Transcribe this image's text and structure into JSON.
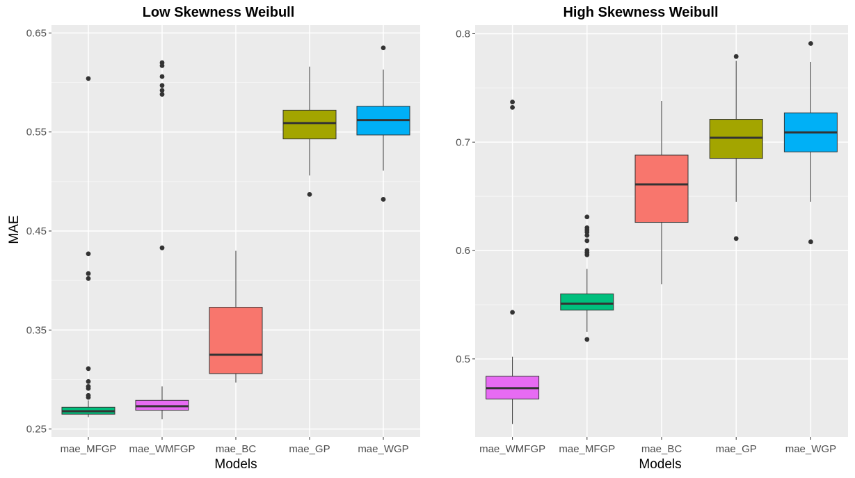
{
  "colors": {
    "panel_bg": "#ebebeb",
    "grid_major": "#ffffff",
    "grid_minor": "#f4f4f4",
    "box_outline": "#333333",
    "mae_BC": "#f8766d",
    "mae_GP": "#a3a500",
    "mae_MFGP": "#00bf7d",
    "mae_WGP": "#00b0f6",
    "mae_WMFGP": "#e76bf3"
  },
  "chart_data": [
    {
      "type": "box",
      "title": "Low Skewness Weibull",
      "xlabel": "Models",
      "ylabel": "MAE",
      "ylim": [
        0.242,
        0.658
      ],
      "y_ticks": [
        0.25,
        0.35,
        0.45,
        0.55,
        0.65
      ],
      "y_tick_labels": [
        "0.25",
        "0.35",
        "0.45",
        "0.55",
        "0.65"
      ],
      "categories": [
        "mae_MFGP",
        "mae_WMFGP",
        "mae_BC",
        "mae_GP",
        "mae_WGP"
      ],
      "boxes": [
        {
          "name": "mae_MFGP",
          "color": "#00bf7d",
          "whisker_low": 0.262,
          "q1": 0.265,
          "median": 0.268,
          "q3": 0.272,
          "whisker_high": 0.279,
          "outliers": [
            0.282,
            0.284,
            0.291,
            0.293,
            0.298,
            0.311,
            0.402,
            0.407,
            0.427,
            0.604
          ]
        },
        {
          "name": "mae_WMFGP",
          "color": "#e76bf3",
          "whisker_low": 0.26,
          "q1": 0.269,
          "median": 0.273,
          "q3": 0.279,
          "whisker_high": 0.293,
          "outliers": [
            0.433,
            0.588,
            0.592,
            0.597,
            0.606,
            0.617,
            0.62
          ]
        },
        {
          "name": "mae_BC",
          "color": "#f8766d",
          "whisker_low": 0.297,
          "q1": 0.306,
          "median": 0.325,
          "q3": 0.373,
          "whisker_high": 0.43,
          "outliers": []
        },
        {
          "name": "mae_GP",
          "color": "#a3a500",
          "whisker_low": 0.506,
          "q1": 0.543,
          "median": 0.559,
          "q3": 0.572,
          "whisker_high": 0.616,
          "outliers": [
            0.487
          ]
        },
        {
          "name": "mae_WGP",
          "color": "#00b0f6",
          "whisker_low": 0.511,
          "q1": 0.547,
          "median": 0.562,
          "q3": 0.576,
          "whisker_high": 0.613,
          "outliers": [
            0.482,
            0.635
          ]
        }
      ]
    },
    {
      "type": "box",
      "title": "High Skewness Weibull",
      "xlabel": "Models",
      "ylabel": "",
      "ylim": [
        0.428,
        0.808
      ],
      "y_ticks": [
        0.5,
        0.6,
        0.7,
        0.8
      ],
      "y_tick_labels": [
        "0.5",
        "0.6",
        "0.7",
        "0.8"
      ],
      "categories": [
        "mae_WMFGP",
        "mae_MFGP",
        "mae_BC",
        "mae_GP",
        "mae_WGP"
      ],
      "boxes": [
        {
          "name": "mae_WMFGP",
          "color": "#e76bf3",
          "whisker_low": 0.44,
          "q1": 0.463,
          "median": 0.473,
          "q3": 0.484,
          "whisker_high": 0.502,
          "outliers": [
            0.543,
            0.732,
            0.737
          ]
        },
        {
          "name": "mae_MFGP",
          "color": "#00bf7d",
          "whisker_low": 0.525,
          "q1": 0.545,
          "median": 0.551,
          "q3": 0.56,
          "whisker_high": 0.583,
          "outliers": [
            0.518,
            0.596,
            0.598,
            0.6,
            0.609,
            0.614,
            0.617,
            0.619,
            0.621,
            0.631
          ]
        },
        {
          "name": "mae_BC",
          "color": "#f8766d",
          "whisker_low": 0.569,
          "q1": 0.626,
          "median": 0.661,
          "q3": 0.688,
          "whisker_high": 0.738,
          "outliers": []
        },
        {
          "name": "mae_GP",
          "color": "#a3a500",
          "whisker_low": 0.645,
          "q1": 0.685,
          "median": 0.704,
          "q3": 0.721,
          "whisker_high": 0.775,
          "outliers": [
            0.611,
            0.779
          ]
        },
        {
          "name": "mae_WGP",
          "color": "#00b0f6",
          "whisker_low": 0.645,
          "q1": 0.691,
          "median": 0.709,
          "q3": 0.727,
          "whisker_high": 0.774,
          "outliers": [
            0.608,
            0.791
          ]
        }
      ]
    }
  ]
}
